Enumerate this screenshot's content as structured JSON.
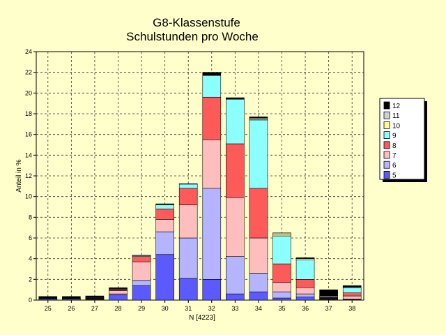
{
  "chart_data": {
    "type": "bar",
    "stacked": true,
    "title": [
      "G8-Klassenstufe",
      "Schulstunden pro Woche"
    ],
    "xlabel": "N [4223]",
    "ylabel": "Anteil in %",
    "ylim": [
      0,
      24
    ],
    "yticks": [
      0,
      2,
      4,
      6,
      8,
      10,
      12,
      14,
      16,
      18,
      20,
      22,
      24
    ],
    "grid": true,
    "legend_position": "right",
    "categories": [
      "25",
      "26",
      "27",
      "28",
      "29",
      "30",
      "31",
      "32",
      "33",
      "34",
      "35",
      "36",
      "37",
      "38"
    ],
    "series": [
      {
        "name": "5",
        "color": "#5a5aff",
        "values": [
          0.1,
          0.1,
          0.05,
          0.5,
          1.4,
          4.4,
          2.1,
          2.0,
          0.6,
          0.8,
          0.2,
          0.3,
          0.05,
          0.05
        ]
      },
      {
        "name": "6",
        "color": "#b4b4ff",
        "values": [
          0.05,
          0.05,
          0.05,
          0.1,
          0.5,
          2.2,
          3.9,
          8.8,
          3.6,
          1.8,
          0.6,
          0.3,
          0.05,
          0.05
        ]
      },
      {
        "name": "7",
        "color": "#ffbebe",
        "values": [
          0.05,
          0.05,
          0.05,
          0.3,
          1.8,
          1.2,
          3.2,
          4.7,
          5.7,
          3.4,
          0.9,
          0.6,
          0.05,
          0.3
        ]
      },
      {
        "name": "8",
        "color": "#ff5a5a",
        "values": [
          0.0,
          0.0,
          0.05,
          0.1,
          0.5,
          1.0,
          1.6,
          4.1,
          5.2,
          4.8,
          1.8,
          0.8,
          0.05,
          0.3
        ]
      },
      {
        "name": "9",
        "color": "#8cffff",
        "values": [
          0.0,
          0.0,
          0.05,
          0.05,
          0.1,
          0.4,
          0.4,
          2.1,
          4.3,
          6.6,
          2.7,
          1.9,
          0.05,
          0.5
        ]
      },
      {
        "name": "10",
        "color": "#ffff8c",
        "values": [
          0.0,
          0.0,
          0.0,
          0.05,
          0.0,
          0.05,
          0.0,
          0.0,
          0.05,
          0.1,
          0.2,
          0.1,
          0.05,
          0.05
        ]
      },
      {
        "name": "11",
        "color": "#d2d2d2",
        "values": [
          0.0,
          0.0,
          0.0,
          0.05,
          0.05,
          0.05,
          0.05,
          0.0,
          0.0,
          0.1,
          0.1,
          0.05,
          0.1,
          0.05
        ]
      },
      {
        "name": "12",
        "color": "#000000",
        "values": [
          0.15,
          0.15,
          0.15,
          0.05,
          0.0,
          0.0,
          0.0,
          0.3,
          0.1,
          0.1,
          0.0,
          0.05,
          0.6,
          0.1
        ]
      }
    ]
  }
}
